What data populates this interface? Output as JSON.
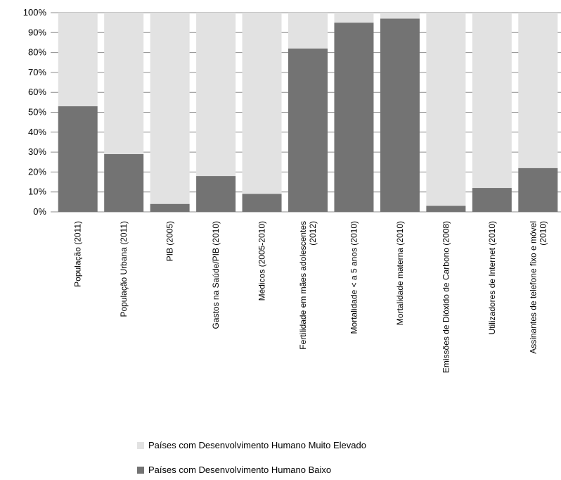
{
  "chart_data": {
    "type": "bar",
    "stacked": true,
    "percent_stacked": true,
    "categories": [
      [
        "População (2011)"
      ],
      [
        "População Urbana (2011)"
      ],
      [
        "PIB (2005)"
      ],
      [
        "Gastos na Saúde/PIB (2010)"
      ],
      [
        "Médicos (2005-2010)"
      ],
      [
        "Fertilidade em mães adolescentes",
        "(2012)"
      ],
      [
        "Mortalidade < a 5 anos (2010)"
      ],
      [
        "Mortalidade materna (2010)"
      ],
      [
        "Emissões de Dióxido de Carbono (2008)"
      ],
      [
        "Utilizadores de Internet (2010)"
      ],
      [
        "Assinantes de telefone fixo e móvel",
        "(2010)"
      ]
    ],
    "series": [
      {
        "name": "Países com Desenvolvimento Humano Baixo",
        "color": "#737373",
        "values": [
          53,
          29,
          4,
          18,
          9,
          82,
          95,
          97,
          3,
          12,
          22
        ]
      },
      {
        "name": "Países com Desenvolvimento Humano Muito Elevado",
        "color": "#e2e2e2",
        "values": [
          47,
          71,
          96,
          82,
          91,
          18,
          5,
          3,
          97,
          88,
          78
        ]
      }
    ],
    "yticks": [
      "0%",
      "10%",
      "20%",
      "30%",
      "40%",
      "50%",
      "60%",
      "70%",
      "80%",
      "90%",
      "100%"
    ],
    "ylim": [
      0,
      100
    ],
    "grid": true,
    "legend_position": "bottom"
  }
}
